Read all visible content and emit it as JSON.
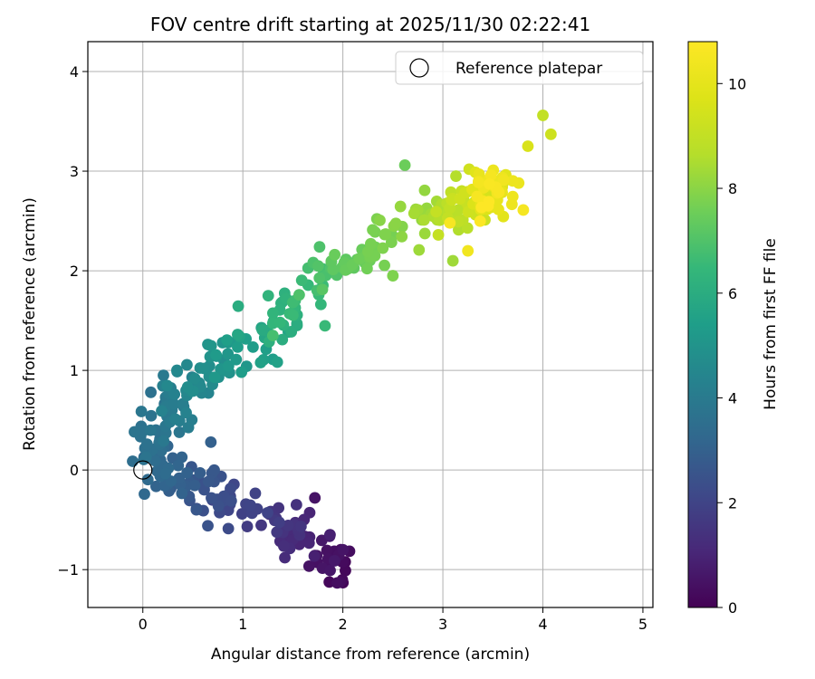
{
  "chart_data": {
    "type": "scatter",
    "title": "FOV centre drift starting at 2025/11/30 02:22:41",
    "xlabel": "Angular distance from reference (arcmin)",
    "ylabel": "Rotation from reference (arcmin)",
    "xlim": [
      -0.55,
      5.1
    ],
    "ylim": [
      -1.38,
      4.3
    ],
    "xticks": [
      0,
      1,
      2,
      3,
      4,
      5
    ],
    "yticks": [
      -1,
      0,
      1,
      2,
      3,
      4
    ],
    "xtick_labels": [
      "0",
      "1",
      "2",
      "3",
      "4",
      "5"
    ],
    "ytick_labels": [
      "−1",
      "0",
      "1",
      "2",
      "3",
      "4"
    ],
    "grid": true,
    "legend": {
      "position": "top-right",
      "entries": [
        "Reference platepar"
      ]
    },
    "reference_point": {
      "x": 0,
      "y": 0,
      "label": "Reference platepar"
    },
    "colorbar": {
      "label": "Hours from first FF file",
      "range": [
        0,
        10.8
      ],
      "ticks": [
        0,
        2,
        4,
        6,
        8,
        10
      ],
      "tick_labels": [
        "0",
        "2",
        "4",
        "6",
        "8",
        "10"
      ],
      "colormap": "viridis"
    },
    "series": [
      {
        "name": "FOV centre drift",
        "color_by": "hours",
        "anchors": [
          {
            "h": 0.0,
            "x": 2.05,
            "y": -1.15
          },
          {
            "h": 0.8,
            "x": 1.75,
            "y": -0.7
          },
          {
            "h": 1.5,
            "x": 1.35,
            "y": -0.5
          },
          {
            "h": 2.2,
            "x": 0.85,
            "y": -0.32
          },
          {
            "h": 2.8,
            "x": 0.45,
            "y": -0.15
          },
          {
            "h": 3.3,
            "x": 0.15,
            "y": 0.05
          },
          {
            "h": 3.7,
            "x": 0.12,
            "y": 0.38
          },
          {
            "h": 4.2,
            "x": 0.35,
            "y": 0.62
          },
          {
            "h": 4.8,
            "x": 0.7,
            "y": 0.95
          },
          {
            "h": 5.5,
            "x": 1.1,
            "y": 1.28
          },
          {
            "h": 6.3,
            "x": 1.45,
            "y": 1.62
          },
          {
            "h": 7.0,
            "x": 1.8,
            "y": 2.0
          },
          {
            "h": 7.6,
            "x": 2.25,
            "y": 2.22
          },
          {
            "h": 8.2,
            "x": 2.75,
            "y": 2.48
          },
          {
            "h": 8.8,
            "x": 3.1,
            "y": 2.62
          },
          {
            "h": 9.5,
            "x": 3.4,
            "y": 2.75
          },
          {
            "h": 10.2,
            "x": 3.55,
            "y": 2.85
          },
          {
            "h": 10.8,
            "x": 3.45,
            "y": 2.65
          }
        ],
        "extra_points": [
          {
            "h": 0.3,
            "x": 1.98,
            "y": -0.8
          },
          {
            "h": 0.5,
            "x": 1.72,
            "y": -0.28
          },
          {
            "h": 1.2,
            "x": 1.42,
            "y": -0.88
          },
          {
            "h": 2.5,
            "x": 0.65,
            "y": -0.56
          },
          {
            "h": 3.0,
            "x": 0.68,
            "y": 0.28
          },
          {
            "h": 3.6,
            "x": 0.08,
            "y": 0.78
          },
          {
            "h": 5.0,
            "x": 0.65,
            "y": 1.26
          },
          {
            "h": 6.8,
            "x": 1.3,
            "y": 1.35
          },
          {
            "h": 7.5,
            "x": 2.62,
            "y": 3.06
          },
          {
            "h": 7.8,
            "x": 2.5,
            "y": 1.95
          },
          {
            "h": 8.3,
            "x": 3.1,
            "y": 2.1
          },
          {
            "h": 9.0,
            "x": 4.0,
            "y": 3.56
          },
          {
            "h": 9.3,
            "x": 4.08,
            "y": 3.37
          },
          {
            "h": 9.6,
            "x": 3.85,
            "y": 3.25
          },
          {
            "h": 10.4,
            "x": 3.25,
            "y": 2.2
          },
          {
            "h": 10.6,
            "x": 3.07,
            "y": 2.48
          }
        ],
        "points_per_segment": 25
      }
    ]
  }
}
